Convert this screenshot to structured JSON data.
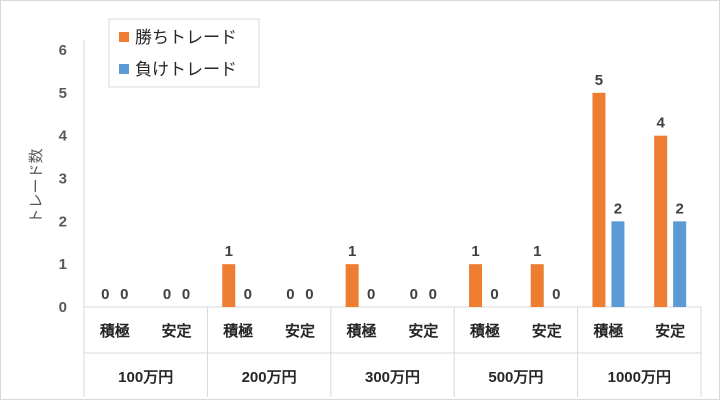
{
  "chart_data": {
    "type": "bar",
    "ylabel": "トレード数",
    "ylim": [
      0,
      6
    ],
    "yticks": [
      0,
      1,
      2,
      3,
      4,
      5,
      6
    ],
    "grid": false,
    "legend_position": "top-left",
    "groups": [
      "100万円",
      "200万円",
      "300万円",
      "500万円",
      "1000万円"
    ],
    "categories": [
      "積極",
      "安定",
      "積極",
      "安定",
      "積極",
      "安定",
      "積極",
      "安定",
      "積極",
      "安定"
    ],
    "series": [
      {
        "name": "勝ちトレード",
        "color": "#ED7D31",
        "values": [
          0,
          0,
          1,
          0,
          1,
          0,
          1,
          1,
          5,
          4
        ]
      },
      {
        "name": "負けトレード",
        "color": "#5B9BD5",
        "values": [
          0,
          0,
          0,
          0,
          0,
          0,
          0,
          0,
          2,
          2
        ]
      }
    ]
  }
}
